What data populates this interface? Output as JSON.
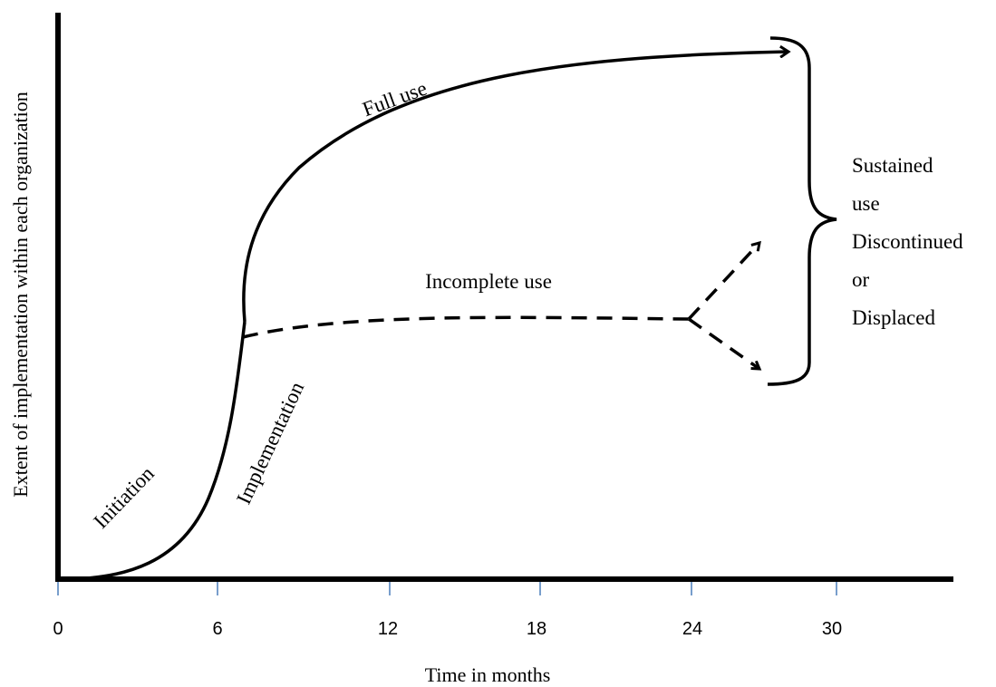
{
  "axes": {
    "x_title": "Time in months",
    "y_title": "Extent of implementation within each organization",
    "x_ticks": [
      "0",
      "6",
      "12",
      "18",
      "24",
      "30"
    ],
    "tick_color": "#4a7ebb",
    "line_color": "#000000"
  },
  "phases": {
    "initiation": "Initiation",
    "implementation": "Implementation",
    "full_use": "Full use",
    "incomplete_use": "Incomplete use"
  },
  "outcomes": [
    "Sustained",
    "use",
    "Discontinued",
    "or",
    "Displaced"
  ]
}
